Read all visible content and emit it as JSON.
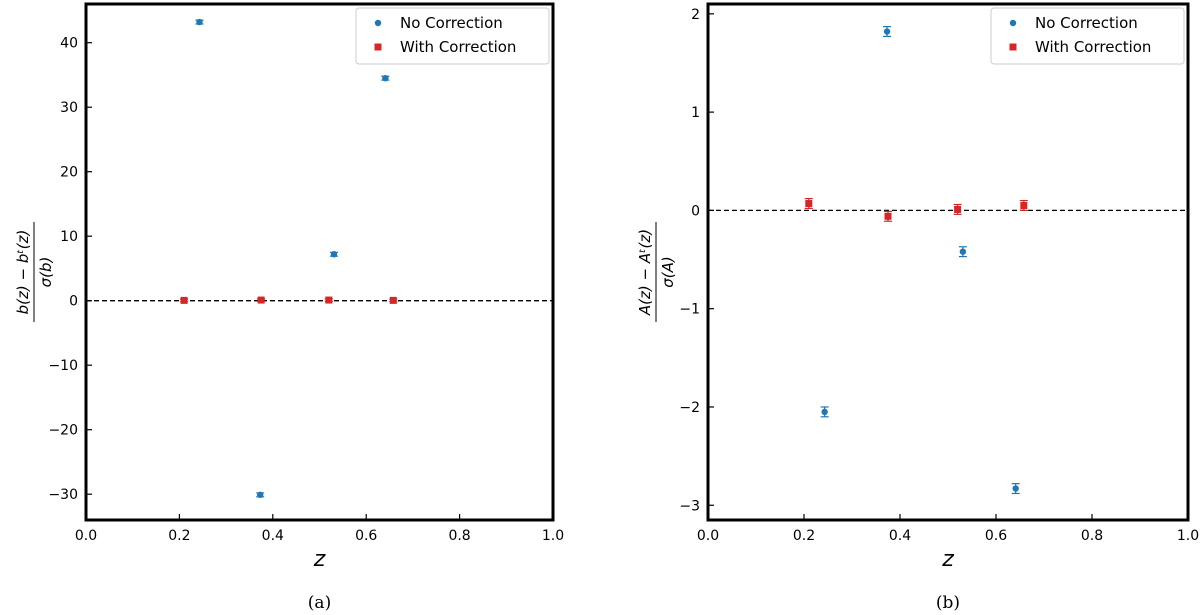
{
  "colors": {
    "no_correction": "#1f77b4",
    "with_correction": "#d62728",
    "zero_line": "#000000"
  },
  "chart_data": [
    {
      "type": "scatter",
      "panel": "a",
      "caption": "(a)",
      "xlabel": "z",
      "ylabel": {
        "num": "b(z) − bᵗ(z)",
        "den": "σ(b)"
      },
      "xlim": [
        0.0,
        1.0
      ],
      "ylim": [
        -34,
        46
      ],
      "xticks": [
        0.0,
        0.2,
        0.4,
        0.6,
        0.8,
        1.0
      ],
      "xtick_labels": [
        "0.0",
        "0.2",
        "0.4",
        "0.6",
        "0.8",
        "1.0"
      ],
      "yticks": [
        40,
        30,
        20,
        10,
        0,
        -10,
        -20,
        -30
      ],
      "ytick_labels": [
        "40",
        "30",
        "20",
        "10",
        "0",
        "−10",
        "−20",
        "−30"
      ],
      "zero_line": 0,
      "legend_position": "top-right",
      "series": [
        {
          "name": "No Correction",
          "marker": "circle",
          "color": "#1f77b4",
          "x": [
            0.243,
            0.373,
            0.531,
            0.641
          ],
          "y": [
            43.2,
            -30.1,
            7.2,
            34.5
          ],
          "err": [
            0.3,
            0.3,
            0.3,
            0.3
          ]
        },
        {
          "name": "With Correction",
          "marker": "square",
          "color": "#d62728",
          "x": [
            0.21,
            0.375,
            0.52,
            0.658
          ],
          "y": [
            0.05,
            0.1,
            0.1,
            0.05
          ],
          "err": [
            0.2,
            0.2,
            0.2,
            0.2
          ]
        }
      ]
    },
    {
      "type": "scatter",
      "panel": "b",
      "caption": "(b)",
      "xlabel": "z",
      "ylabel": {
        "num": "A(z) − Aᵗ(z)",
        "den": "σ(A)"
      },
      "xlim": [
        0.0,
        1.0
      ],
      "ylim": [
        -3.15,
        2.1
      ],
      "xticks": [
        0.0,
        0.2,
        0.4,
        0.6,
        0.8,
        1.0
      ],
      "xtick_labels": [
        "0.0",
        "0.2",
        "0.4",
        "0.6",
        "0.8",
        "1.0"
      ],
      "yticks": [
        2,
        1,
        0,
        -1,
        -2,
        -3
      ],
      "ytick_labels": [
        "2",
        "1",
        "0",
        "−1",
        "−2",
        "−3"
      ],
      "zero_line": 0,
      "legend_position": "top-right",
      "series": [
        {
          "name": "No Correction",
          "marker": "circle",
          "color": "#1f77b4",
          "x": [
            0.243,
            0.373,
            0.531,
            0.641
          ],
          "y": [
            -2.05,
            1.82,
            -0.42,
            -2.83
          ],
          "err": [
            0.05,
            0.05,
            0.05,
            0.05
          ]
        },
        {
          "name": "With Correction",
          "marker": "square",
          "color": "#d62728",
          "x": [
            0.21,
            0.375,
            0.52,
            0.658
          ],
          "y": [
            0.07,
            -0.06,
            0.01,
            0.05
          ],
          "err": [
            0.05,
            0.05,
            0.05,
            0.05
          ]
        }
      ]
    }
  ]
}
